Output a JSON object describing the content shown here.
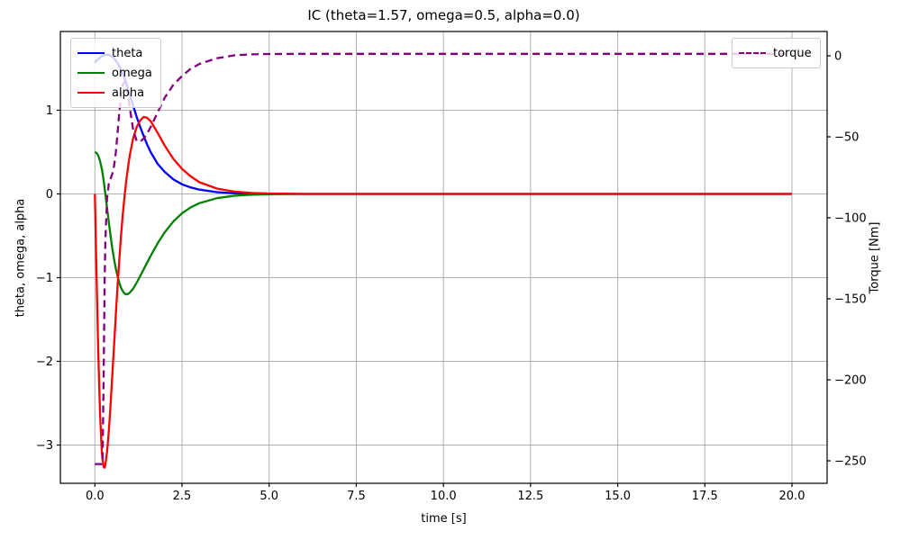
{
  "figure": {
    "background": "#ffffff",
    "plot_border_color": "#000000",
    "grid_color": "#b0b0b0"
  },
  "chart_data": {
    "type": "line",
    "title": "IC (theta=1.57, omega=0.5, alpha=0.0)",
    "xlabel": "time [s]",
    "ylabel_left": "theta, omega, alpha",
    "ylabel_right": "Torque [Nm]",
    "xlim": [
      -1.0,
      21.0
    ],
    "ylim_left": [
      -3.46,
      1.94
    ],
    "ylim_right": [
      -264,
      15
    ],
    "grid": true,
    "x_ticks": [
      0,
      2.5,
      5,
      7.5,
      10,
      12.5,
      15,
      17.5,
      20
    ],
    "x_tick_labels": [
      "0.0",
      "2.5",
      "5.0",
      "7.5",
      "10.0",
      "12.5",
      "15.0",
      "17.5",
      "20.0"
    ],
    "y_ticks_left": [
      1,
      0,
      -1,
      -2,
      -3
    ],
    "y_tick_labels_left": [
      "1",
      "0",
      "−1",
      "−2",
      "−3"
    ],
    "y_ticks_right": [
      0,
      -50,
      -100,
      -150,
      -200,
      -250
    ],
    "y_tick_labels_right": [
      "0",
      "−50",
      "−100",
      "−150",
      "−200",
      "−250"
    ],
    "legend_left": {
      "position": "upper left",
      "entries": [
        {
          "label": "theta",
          "color": "#0000ff",
          "style": "solid"
        },
        {
          "label": "omega",
          "color": "#008000",
          "style": "solid"
        },
        {
          "label": "alpha",
          "color": "#ff0000",
          "style": "solid"
        }
      ]
    },
    "legend_right": {
      "position": "upper right",
      "entries": [
        {
          "label": "torque",
          "color": "#800080",
          "style": "dashed"
        }
      ]
    },
    "x": [
      0,
      0.05,
      0.1,
      0.15,
      0.2,
      0.22,
      0.25,
      0.28,
      0.3,
      0.35,
      0.4,
      0.45,
      0.5,
      0.55,
      0.6,
      0.65,
      0.7,
      0.75,
      0.8,
      0.85,
      0.9,
      0.95,
      1.0,
      1.1,
      1.2,
      1.3,
      1.4,
      1.5,
      1.6,
      1.8,
      2.0,
      2.25,
      2.5,
      2.75,
      3.0,
      3.5,
      4.0,
      4.5,
      5.0,
      6.0,
      7.0,
      8.0,
      10.0,
      12.0,
      14.0,
      16.0,
      18.0,
      20.0
    ],
    "series": [
      {
        "name": "theta",
        "axis": "left",
        "color": "#0000ff",
        "style": "solid",
        "values": [
          1.57,
          1.592,
          1.612,
          1.63,
          1.645,
          1.65,
          1.656,
          1.66,
          1.662,
          1.665,
          1.662,
          1.654,
          1.64,
          1.62,
          1.595,
          1.565,
          1.53,
          1.487,
          1.44,
          1.385,
          1.325,
          1.26,
          1.19,
          1.05,
          0.92,
          0.8,
          0.69,
          0.59,
          0.5,
          0.36,
          0.265,
          0.175,
          0.115,
          0.077,
          0.052,
          0.022,
          0.009,
          0.004,
          0.002,
          0,
          0,
          0,
          0,
          0,
          0,
          0,
          0,
          0
        ]
      },
      {
        "name": "omega",
        "axis": "left",
        "color": "#008000",
        "style": "solid",
        "values": [
          0.5,
          0.49,
          0.455,
          0.39,
          0.3,
          0.25,
          0.165,
          0.07,
          0.0,
          -0.17,
          -0.34,
          -0.5,
          -0.65,
          -0.78,
          -0.89,
          -0.98,
          -1.06,
          -1.12,
          -1.16,
          -1.19,
          -1.2,
          -1.195,
          -1.18,
          -1.13,
          -1.06,
          -0.98,
          -0.9,
          -0.82,
          -0.74,
          -0.59,
          -0.46,
          -0.33,
          -0.23,
          -0.16,
          -0.11,
          -0.05,
          -0.022,
          -0.009,
          -0.004,
          0,
          0,
          0,
          0,
          0,
          0,
          0,
          0,
          0
        ]
      },
      {
        "name": "alpha",
        "axis": "left",
        "color": "#ff0000",
        "style": "solid",
        "values": [
          0.0,
          -1.0,
          -1.95,
          -2.65,
          -3.08,
          -3.18,
          -3.26,
          -3.27,
          -3.24,
          -3.08,
          -2.83,
          -2.52,
          -2.17,
          -1.81,
          -1.45,
          -1.11,
          -0.79,
          -0.5,
          -0.25,
          -0.03,
          0.16,
          0.32,
          0.46,
          0.67,
          0.8,
          0.88,
          0.92,
          0.91,
          0.87,
          0.73,
          0.58,
          0.42,
          0.3,
          0.21,
          0.14,
          0.065,
          0.028,
          0.012,
          0.005,
          0,
          0,
          0,
          0,
          0,
          0,
          0,
          0,
          0
        ]
      },
      {
        "name": "torque",
        "axis": "right",
        "color": "#800080",
        "style": "dashed",
        "values": [
          -252,
          -252,
          -252,
          -252,
          -252,
          -251,
          -200,
          -140,
          -115,
          -88,
          -79,
          -76,
          -73,
          -68,
          -60,
          -48,
          -35,
          -25,
          -18,
          -16,
          -18,
          -24,
          -32,
          -46,
          -52.5,
          -53,
          -51,
          -48,
          -44,
          -35,
          -26,
          -18,
          -12.5,
          -8,
          -5,
          -1.5,
          0.3,
          0.9,
          1.1,
          1.2,
          1.2,
          1.2,
          1.2,
          1.2,
          1.2,
          1.2,
          1.2,
          1.2
        ]
      }
    ]
  }
}
